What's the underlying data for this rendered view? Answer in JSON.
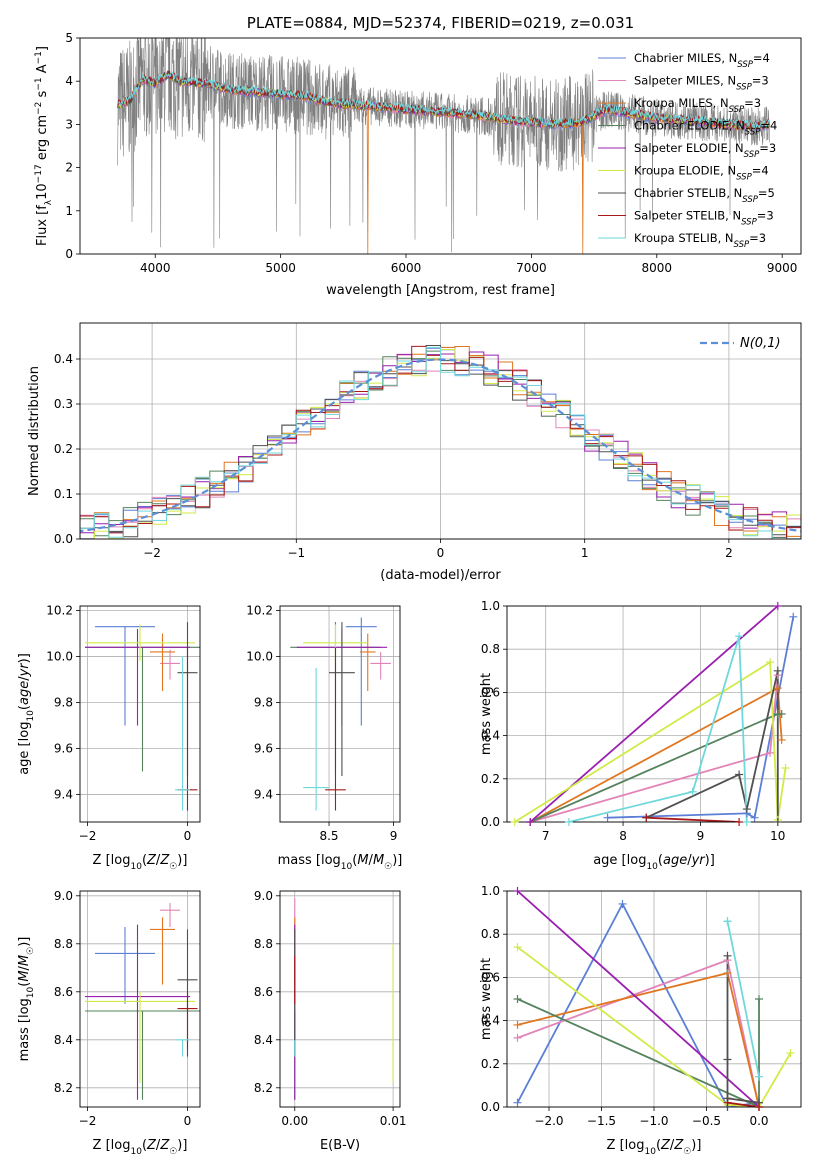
{
  "colors": {
    "chabrier_miles": "#5b7fd6",
    "salpeter_miles": "#e384b8",
    "kroupa_miles": "#e0761f",
    "chabrier_elodie": "#55835d",
    "salpeter_elodie": "#9a1fb0",
    "kroupa_elodie": "#d2ea48",
    "chabrier_stelib": "#505050",
    "salpeter_stelib": "#a81a1a",
    "kroupa_stelib": "#6fd8dc",
    "data": "#808080",
    "normal": "#5b8fd8"
  },
  "chart_data": [
    {
      "id": "spectrum",
      "type": "line",
      "title": "PLATE=0884, MJD=52374, FIBERID=0219, z=0.031",
      "xlabel": "wavelength [Angstrom, rest frame]",
      "ylabel": "Flux [fλ10⁻¹⁷ erg cm⁻² s⁻¹ A⁻¹]",
      "xlim": [
        3400,
        9150
      ],
      "ylim": [
        0,
        5
      ],
      "xticks": [
        4000,
        5000,
        6000,
        7000,
        8000,
        9000
      ],
      "yticks": [
        0,
        1,
        2,
        3,
        4,
        5
      ],
      "model_x": [
        3700,
        3800,
        3900,
        4000,
        4100,
        4200,
        4400,
        4600,
        4800,
        5000,
        5200,
        5400,
        5600,
        5800,
        6000,
        6200,
        6400,
        6600,
        6800,
        7000,
        7200,
        7400,
        7600,
        7800,
        8000,
        8200,
        8400,
        8600,
        8800,
        8900
      ],
      "model_y": [
        3.45,
        3.55,
        4.05,
        3.95,
        4.15,
        4.0,
        3.95,
        3.8,
        3.75,
        3.7,
        3.65,
        3.5,
        3.45,
        3.4,
        3.35,
        3.3,
        3.25,
        3.2,
        3.1,
        3.05,
        3.0,
        3.05,
        3.35,
        3.25,
        3.15,
        3.1,
        3.05,
        3.0,
        2.95,
        3.0
      ],
      "data_x_range": [
        3700,
        8900
      ],
      "legend": [
        {
          "label": "Chabrier MILES, N",
          "sub": "SSP",
          "suffix": "=4",
          "color": "chabrier_miles"
        },
        {
          "label": "Salpeter MILES, N",
          "sub": "SSP",
          "suffix": "=3",
          "color": "salpeter_miles"
        },
        {
          "label": "Kroupa MILES, N",
          "sub": "SSP",
          "suffix": "=3",
          "color": "kroupa_miles"
        },
        {
          "label": "Chabrier ELODIE, N",
          "sub": "SSP",
          "suffix": "=4",
          "color": "chabrier_elodie"
        },
        {
          "label": "Salpeter ELODIE, N",
          "sub": "SSP",
          "suffix": "=3",
          "color": "salpeter_elodie"
        },
        {
          "label": "Kroupa ELODIE, N",
          "sub": "SSP",
          "suffix": "=4",
          "color": "kroupa_elodie"
        },
        {
          "label": "Chabrier STELIB, N",
          "sub": "SSP",
          "suffix": "=5",
          "color": "chabrier_stelib"
        },
        {
          "label": "Salpeter STELIB, N",
          "sub": "SSP",
          "suffix": "=3",
          "color": "salpeter_stelib"
        },
        {
          "label": "Kroupa STELIB, N",
          "sub": "SSP",
          "suffix": "=3",
          "color": "kroupa_stelib"
        }
      ]
    },
    {
      "id": "residuals",
      "type": "line",
      "xlabel": "(data-model)/error",
      "ylabel": "Normed distribution",
      "xlim": [
        -2.5,
        2.5
      ],
      "ylim": [
        0,
        0.48
      ],
      "xticks": [
        -2,
        -1,
        0,
        1,
        2
      ],
      "yticks": [
        0.0,
        0.1,
        0.2,
        0.3,
        0.4
      ],
      "legend": "N(0,1)",
      "bin_width": 0.1,
      "grid": true
    },
    {
      "id": "age_vs_Z",
      "type": "scatter",
      "xlabel": "Z [log10(Z/Z☉)]",
      "ylabel": "age [log10(age/yr)]",
      "xlim": [
        -2.15,
        0.25
      ],
      "ylim": [
        9.28,
        10.22
      ],
      "xticks": [
        -2,
        0
      ],
      "yticks": [
        9.4,
        9.6,
        9.8,
        10.0,
        10.2
      ],
      "points": [
        {
          "x": -1.25,
          "y": 10.13,
          "xerr": 0.6,
          "ylo": 9.7,
          "yhi": 10.13,
          "color": "chabrier_miles"
        },
        {
          "x": -0.35,
          "y": 9.97,
          "xerr": 0.2,
          "ylo": 9.9,
          "yhi": 10.03,
          "color": "salpeter_miles"
        },
        {
          "x": -0.5,
          "y": 10.02,
          "xerr": 0.25,
          "ylo": 9.85,
          "yhi": 10.1,
          "color": "kroupa_miles"
        },
        {
          "x": -0.9,
          "y": 10.04,
          "xerr": 1.15,
          "ylo": 9.5,
          "yhi": 10.04,
          "color": "chabrier_elodie"
        },
        {
          "x": -1.0,
          "y": 10.04,
          "xerr": 1.05,
          "ylo": 9.7,
          "yhi": 10.12,
          "color": "salpeter_elodie"
        },
        {
          "x": -0.95,
          "y": 10.06,
          "xerr": 1.1,
          "ylo": 9.98,
          "yhi": 10.14,
          "color": "kroupa_elodie"
        },
        {
          "x": 0.0,
          "y": 9.93,
          "xerr": 0.2,
          "ylo": 9.48,
          "yhi": 10.15,
          "color": "chabrier_stelib"
        },
        {
          "x": 0.0,
          "y": 9.42,
          "xerr": 0.2,
          "ylo": 9.33,
          "yhi": 10.04,
          "color": "salpeter_stelib"
        },
        {
          "x": -0.1,
          "y": 9.42,
          "xerr": 0.15,
          "ylo": 9.33,
          "yhi": 10.0,
          "color": "kroupa_stelib"
        }
      ]
    },
    {
      "id": "age_vs_mass",
      "type": "scatter",
      "xlabel": "mass [log10(M/M☉)]",
      "ylabel": "",
      "xlim": [
        8.12,
        9.05
      ],
      "ylim": [
        9.28,
        10.22
      ],
      "xticks": [
        8.5,
        9.0
      ],
      "yticks": [
        9.4,
        9.6,
        9.8,
        10.0,
        10.2
      ],
      "points": [
        {
          "x": 8.75,
          "y": 10.13,
          "xerr": 0.12,
          "ylo": 9.7,
          "yhi": 10.17,
          "color": "chabrier_miles"
        },
        {
          "x": 8.9,
          "y": 9.97,
          "xerr": 0.08,
          "ylo": 9.9,
          "yhi": 10.02,
          "color": "salpeter_miles"
        },
        {
          "x": 8.8,
          "y": 10.02,
          "xerr": 0.06,
          "ylo": 9.85,
          "yhi": 10.1,
          "color": "kroupa_miles"
        },
        {
          "x": 8.55,
          "y": 10.04,
          "xerr": 0.35,
          "ylo": 9.5,
          "yhi": 10.15,
          "color": "chabrier_elodie"
        },
        {
          "x": 8.6,
          "y": 10.04,
          "xerr": 0.35,
          "ylo": 9.7,
          "yhi": 10.12,
          "color": "salpeter_elodie"
        },
        {
          "x": 8.55,
          "y": 10.06,
          "xerr": 0.25,
          "ylo": 9.98,
          "yhi": 10.14,
          "color": "kroupa_elodie"
        },
        {
          "x": 8.6,
          "y": 9.93,
          "xerr": 0.1,
          "ylo": 9.48,
          "yhi": 10.15,
          "color": "chabrier_stelib"
        },
        {
          "x": 8.55,
          "y": 9.42,
          "xerr": 0.08,
          "ylo": 9.33,
          "yhi": 10.04,
          "color": "salpeter_stelib"
        },
        {
          "x": 8.4,
          "y": 9.43,
          "xerr": 0.1,
          "ylo": 9.33,
          "yhi": 9.95,
          "color": "kroupa_stelib"
        }
      ]
    },
    {
      "id": "mass_weight_vs_age",
      "type": "line",
      "xlabel": "age [log10(age/yr)]",
      "ylabel": "mass weight",
      "xlim": [
        6.5,
        10.3
      ],
      "ylim": [
        0,
        1.0
      ],
      "xticks": [
        7,
        8,
        9,
        10
      ],
      "yticks": [
        0.0,
        0.2,
        0.4,
        0.6,
        0.8,
        1.0
      ],
      "series": [
        {
          "color": "chabrier_miles",
          "x": [
            7.8,
            9.6,
            9.7,
            10.2
          ],
          "y": [
            0.02,
            0.04,
            0.02,
            0.95
          ]
        },
        {
          "color": "salpeter_miles",
          "x": [
            6.8,
            9.9,
            10.0
          ],
          "y": [
            0.0,
            0.32,
            0.68
          ]
        },
        {
          "color": "kroupa_miles",
          "x": [
            6.8,
            10.0,
            10.05
          ],
          "y": [
            0.0,
            0.62,
            0.38
          ]
        },
        {
          "color": "chabrier_elodie",
          "x": [
            6.8,
            10.0,
            10.05
          ],
          "y": [
            0.0,
            0.5,
            0.5
          ]
        },
        {
          "color": "salpeter_elodie",
          "x": [
            6.8,
            10.0
          ],
          "y": [
            0.0,
            1.0
          ]
        },
        {
          "color": "kroupa_elodie",
          "x": [
            6.6,
            9.9,
            10.0,
            10.1
          ],
          "y": [
            0.0,
            0.74,
            0.01,
            0.25
          ]
        },
        {
          "color": "chabrier_stelib",
          "x": [
            8.3,
            9.5,
            9.6,
            10.0,
            10.0
          ],
          "y": [
            0.02,
            0.22,
            0.06,
            0.7,
            0.0
          ]
        },
        {
          "color": "salpeter_stelib",
          "x": [
            8.3,
            9.5
          ],
          "y": [
            0.02,
            0.0
          ]
        },
        {
          "color": "kroupa_stelib",
          "x": [
            7.3,
            8.9,
            9.5,
            9.6
          ],
          "y": [
            0.0,
            0.14,
            0.86,
            0.0
          ]
        }
      ]
    },
    {
      "id": "mass_vs_Z",
      "type": "scatter",
      "xlabel": "Z [log10(Z/Z☉)]",
      "ylabel": "mass [log10(M/M☉)]",
      "xlim": [
        -2.15,
        0.25
      ],
      "ylim": [
        8.12,
        9.02
      ],
      "xticks": [
        -2,
        0
      ],
      "yticks": [
        8.2,
        8.4,
        8.6,
        8.8,
        9.0
      ],
      "points": [
        {
          "x": -1.25,
          "y": 8.76,
          "xerr": 0.6,
          "ylo": 8.55,
          "yhi": 8.87,
          "color": "chabrier_miles"
        },
        {
          "x": -0.35,
          "y": 8.94,
          "xerr": 0.2,
          "ylo": 8.87,
          "yhi": 8.97,
          "color": "salpeter_miles"
        },
        {
          "x": -0.5,
          "y": 8.86,
          "xerr": 0.25,
          "ylo": 8.63,
          "yhi": 8.91,
          "color": "kroupa_miles"
        },
        {
          "x": -0.9,
          "y": 8.52,
          "xerr": 1.15,
          "ylo": 8.15,
          "yhi": 8.52,
          "color": "chabrier_elodie"
        },
        {
          "x": -1.0,
          "y": 8.58,
          "xerr": 1.05,
          "ylo": 8.15,
          "yhi": 8.88,
          "color": "salpeter_elodie"
        },
        {
          "x": -0.95,
          "y": 8.56,
          "xerr": 1.1,
          "ylo": 8.22,
          "yhi": 8.6,
          "color": "kroupa_elodie"
        },
        {
          "x": 0.0,
          "y": 8.65,
          "xerr": 0.2,
          "ylo": 8.33,
          "yhi": 8.86,
          "color": "chabrier_stelib"
        },
        {
          "x": 0.0,
          "y": 8.53,
          "xerr": 0.2,
          "ylo": 8.36,
          "yhi": 8.6,
          "color": "salpeter_stelib"
        },
        {
          "x": -0.1,
          "y": 8.4,
          "xerr": 0.15,
          "ylo": 8.33,
          "yhi": 8.4,
          "color": "kroupa_stelib"
        }
      ]
    },
    {
      "id": "mass_vs_ebv",
      "type": "scatter",
      "xlabel": "E(B-V)",
      "ylabel": "",
      "xlim": [
        -0.0015,
        0.0107
      ],
      "ylim": [
        8.12,
        9.02
      ],
      "xticks": [
        0.0,
        0.01
      ],
      "xtick_labels": [
        "0.00",
        "0.01"
      ],
      "yticks": [
        8.2,
        8.4,
        8.6,
        8.8,
        9.0
      ],
      "points": [
        {
          "x": 0.0,
          "y": 8.76,
          "ylo": 8.55,
          "yhi": 8.87,
          "color": "chabrier_miles"
        },
        {
          "x": 0.0,
          "y": 8.94,
          "ylo": 8.87,
          "yhi": 8.99,
          "color": "salpeter_miles"
        },
        {
          "x": 0.0,
          "y": 8.86,
          "ylo": 8.63,
          "yhi": 8.91,
          "color": "kroupa_miles"
        },
        {
          "x": 0.0,
          "y": 8.52,
          "ylo": 8.15,
          "yhi": 8.52,
          "color": "chabrier_elodie"
        },
        {
          "x": 0.0,
          "y": 8.58,
          "ylo": 8.15,
          "yhi": 8.88,
          "color": "salpeter_elodie"
        },
        {
          "x": 0.01,
          "y": 8.56,
          "ylo": 8.22,
          "yhi": 8.8,
          "color": "kroupa_elodie"
        },
        {
          "x": 0.0,
          "y": 8.65,
          "ylo": 8.33,
          "yhi": 8.86,
          "color": "chabrier_stelib"
        },
        {
          "x": 0.0,
          "y": 8.6,
          "ylo": 8.55,
          "yhi": 8.75,
          "color": "salpeter_stelib"
        },
        {
          "x": 0.0,
          "y": 8.4,
          "ylo": 8.33,
          "yhi": 8.4,
          "color": "kroupa_stelib"
        }
      ]
    },
    {
      "id": "mass_weight_vs_Z",
      "type": "line",
      "xlabel": "Z [log10(Z/Z☉)]",
      "ylabel": "mass weight",
      "xlim": [
        -2.4,
        0.4
      ],
      "ylim": [
        0,
        1.0
      ],
      "xticks": [
        -2.0,
        -1.5,
        -1.0,
        -0.5,
        0.0
      ],
      "xtick_labels": [
        "−2.0",
        "−1.5",
        "−1.0",
        "−0.5",
        "0.0"
      ],
      "yticks": [
        0.0,
        0.2,
        0.4,
        0.6,
        0.8,
        1.0
      ],
      "series": [
        {
          "color": "chabrier_miles",
          "x": [
            -2.3,
            -1.3,
            -0.3,
            0.0
          ],
          "y": [
            0.02,
            0.94,
            0.0,
            0.02
          ]
        },
        {
          "color": "salpeter_miles",
          "x": [
            -2.3,
            -0.3,
            0.0
          ],
          "y": [
            0.32,
            0.68,
            0.0
          ]
        },
        {
          "color": "kroupa_miles",
          "x": [
            -2.3,
            -0.3,
            0.0
          ],
          "y": [
            0.38,
            0.62,
            0.0
          ]
        },
        {
          "color": "chabrier_elodie",
          "x": [
            -2.3,
            0.0,
            0.0
          ],
          "y": [
            0.5,
            0.0,
            0.5
          ]
        },
        {
          "color": "salpeter_elodie",
          "x": [
            -2.3,
            0.0
          ],
          "y": [
            1.0,
            0.0
          ]
        },
        {
          "color": "kroupa_elodie",
          "x": [
            -2.3,
            -0.3,
            0.0,
            0.3
          ],
          "y": [
            0.74,
            0.01,
            0.0,
            0.25
          ]
        },
        {
          "color": "chabrier_stelib",
          "x": [
            -0.3,
            -0.3,
            -0.3,
            -0.3,
            0.0
          ],
          "y": [
            0.0,
            0.22,
            0.7,
            0.04,
            0.02
          ]
        },
        {
          "color": "salpeter_stelib",
          "x": [
            -0.3,
            0.0
          ],
          "y": [
            0.02,
            0.0
          ]
        },
        {
          "color": "kroupa_stelib",
          "x": [
            -0.3,
            -0.3,
            0.0
          ],
          "y": [
            0.86,
            0.86,
            0.14
          ]
        }
      ]
    }
  ]
}
